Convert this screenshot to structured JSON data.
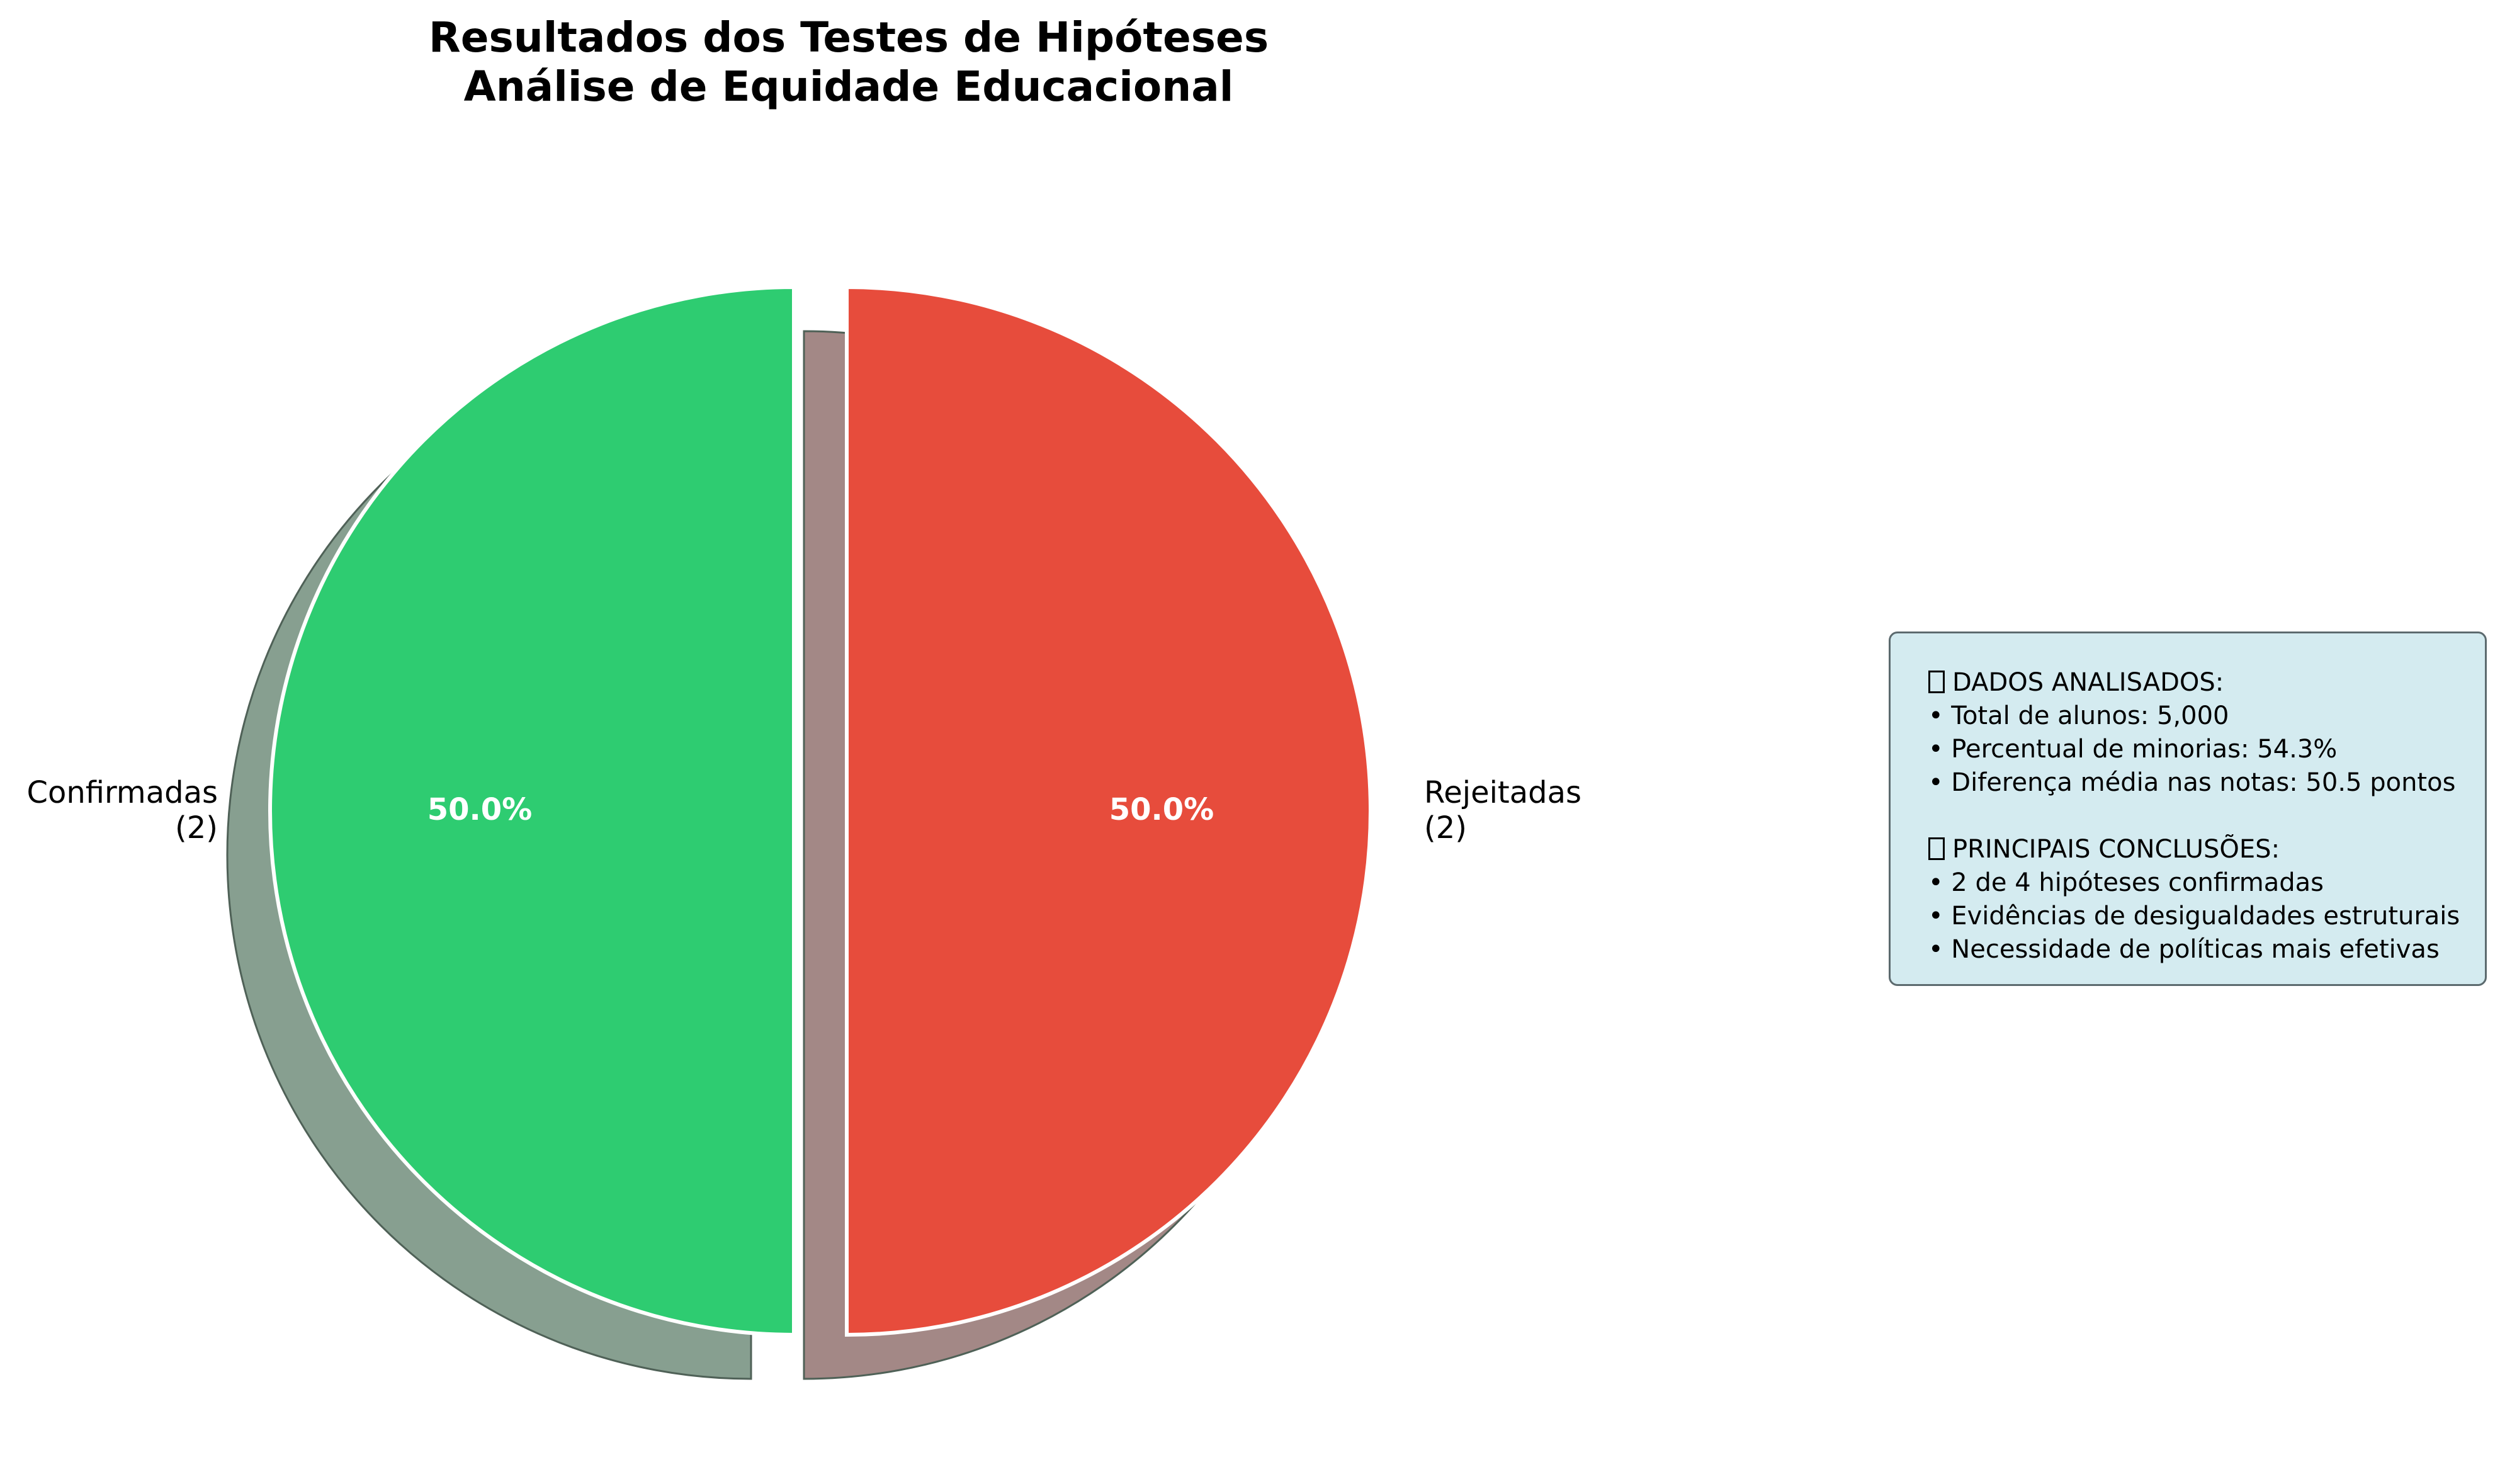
{
  "chart_data": {
    "type": "pie",
    "title": "Resultados dos Testes de Hipóteses",
    "subtitle": "Análise de Equidade Educacional",
    "slices": [
      {
        "category": "Confirmadas",
        "count_label": "(2)",
        "value": 2,
        "percent_label": "50.0%",
        "color": "#2ecc71",
        "shadow_color": "#879f90"
      },
      {
        "category": "Rejeitadas",
        "count_label": "(2)",
        "value": 2,
        "percent_label": "50.0%",
        "color": "#e74c3c",
        "shadow_color": "#a38886"
      }
    ],
    "start_angle_deg": 90,
    "exploded": true,
    "shadow": true
  },
  "info_box": {
    "section1_icon": "chart-glyph-icon",
    "section1_header": "DADOS ANALISADOS:",
    "section1_items": [
      "• Total de alunos: 5,000",
      "• Percentual de minorias: 54.3%",
      "• Diferença média nas notas: 50.5 pontos"
    ],
    "section2_icon": "target-glyph-icon",
    "section2_header": "PRINCIPAIS CONCLUSÕES:",
    "section2_items": [
      "• 2 de 4 hipóteses confirmadas",
      "• Evidências de desigualdades estruturais",
      "• Necessidade de políticas mais efetivas"
    ],
    "background_color": "#d4ebf0",
    "border_color": "#5c6a6e"
  }
}
